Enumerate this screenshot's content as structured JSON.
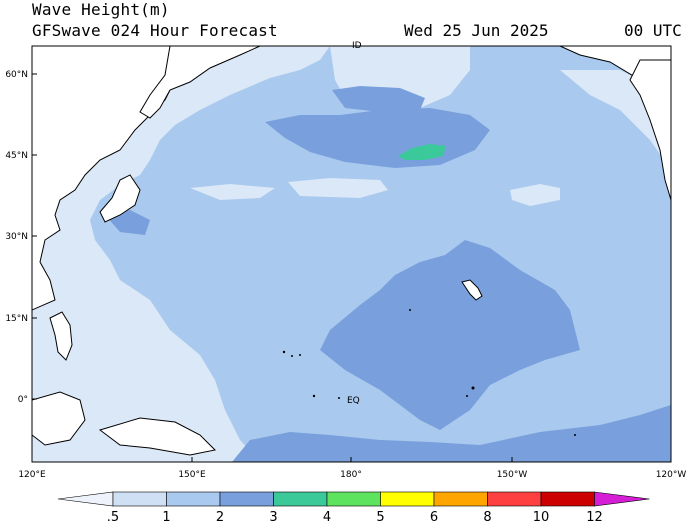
{
  "header": {
    "title": "Wave Height(m)",
    "model_line": "GFSwave 024 Hour Forecast",
    "date": "Wed 25 Jun 2025",
    "time": "00 UTC"
  },
  "map": {
    "region": "North Pacific",
    "lon_range_deg_east": [
      120,
      240
    ],
    "lat_range_deg": [
      -15,
      65
    ],
    "lat_labels": [
      "60°N",
      "45°N",
      "30°N",
      "15°N",
      "0°"
    ],
    "lon_labels": [
      "120°E",
      "150°E",
      "180°",
      "150°W",
      "120°W"
    ],
    "equator_label": "EQ",
    "dateline_marker": "ID",
    "colors": {
      "ocean_background": "#a9c9ee",
      "band_0_5_1": "#dbe8f7",
      "band_1_2": "#a9c9ee",
      "band_2_3": "#79a0dd",
      "band_3_4": "#3cc99a",
      "land": "#ffffff",
      "coast": "#000000"
    }
  },
  "colorbar": {
    "labels": [
      ".5",
      "1",
      "2",
      "3",
      "4",
      "5",
      "6",
      "8",
      "10",
      "12"
    ],
    "colors": [
      "#eef3fb",
      "#cfe0f4",
      "#a9c9ee",
      "#79a0dd",
      "#3cc99a",
      "#5ee35e",
      "#ffff00",
      "#ffa500",
      "#ff4040",
      "#cc0000",
      "#d61ed6"
    ]
  }
}
